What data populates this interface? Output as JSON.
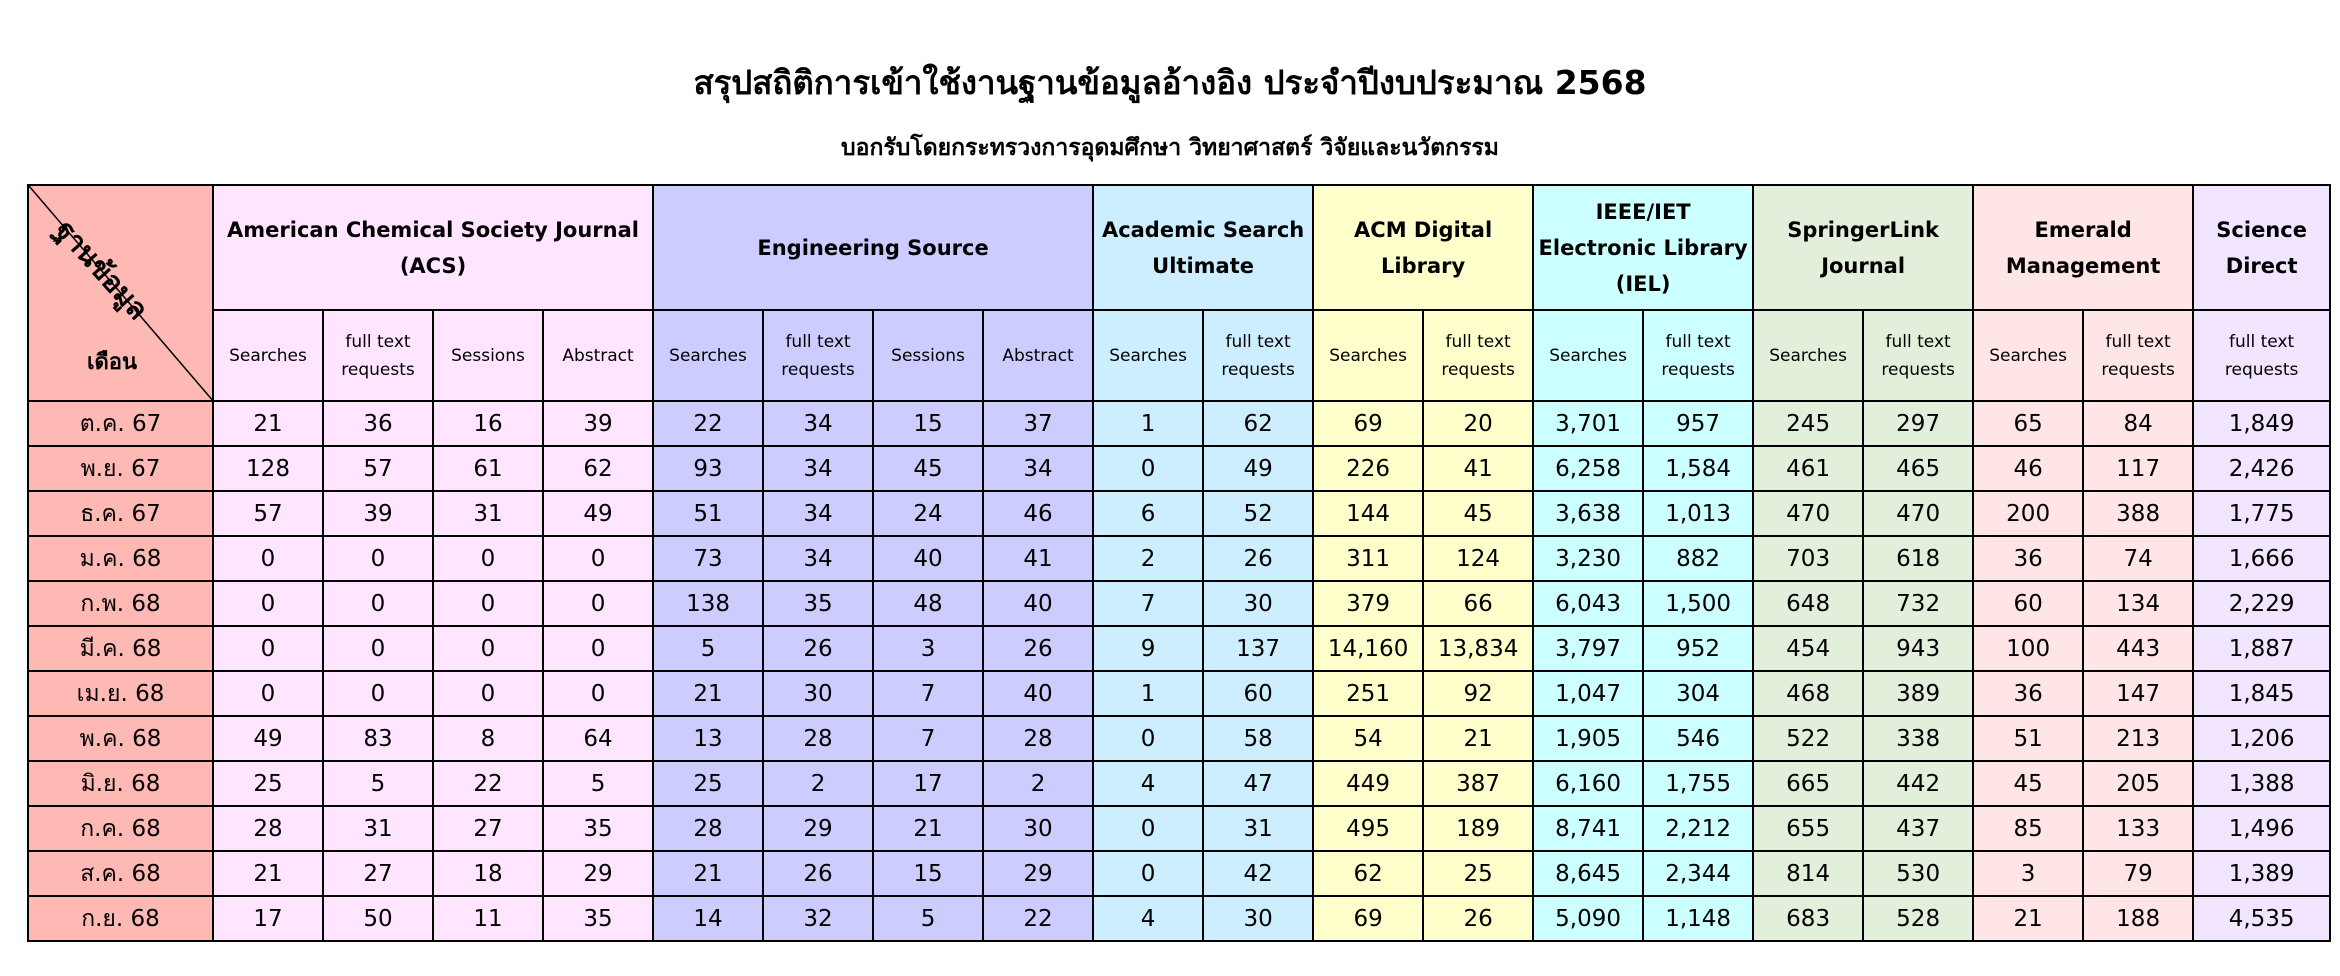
{
  "title": "สรุปสถิติการเข้าใช้งานฐานข้อมูลอ้างอิง ประจำปีงบประมาณ  2568",
  "subtitle": "บอกรับโดยกระทรวงการอุดมศึกษา วิทยาศาสตร์ วิจัยและนวัตกรรม",
  "corner": {
    "top_label": "ฐานข้อมูล",
    "bottom_label": "เดือน"
  },
  "databases": [
    {
      "name": "American Chemical Society Journal (ACS)",
      "color": "#ffe5ff",
      "columns": [
        "Searches",
        "full text requests",
        "Sessions",
        "Abstract"
      ]
    },
    {
      "name": "Engineering Source",
      "color": "#ccccff",
      "columns": [
        "Searches",
        "full text requests",
        "Sessions",
        "Abstract"
      ]
    },
    {
      "name": "Academic Search Ultimate",
      "color": "#cceeff",
      "columns": [
        "Searches",
        "full text requests"
      ]
    },
    {
      "name": "ACM Digital Library",
      "color": "#ffffcc",
      "columns": [
        "Searches",
        "full text requests"
      ]
    },
    {
      "name": "IEEE/IET Electronic Library (IEL)",
      "color": "#ccffff",
      "columns": [
        "Searches",
        "full text requests"
      ]
    },
    {
      "name": "SpringerLink Journal",
      "color": "#e2efda",
      "columns": [
        "Searches",
        "full text requests"
      ]
    },
    {
      "name": "Emerald Management",
      "color": "#ffe5e5",
      "columns": [
        "Searches",
        "full text requests"
      ]
    },
    {
      "name": "Science Direct",
      "color": "#f2e5ff",
      "columns": [
        "full text requests"
      ]
    }
  ],
  "rows": [
    {
      "month": "ต.ค. 67",
      "values": [
        "21",
        "36",
        "16",
        "39",
        "22",
        "34",
        "15",
        "37",
        "1",
        "62",
        "69",
        "20",
        "3,701",
        "957",
        "245",
        "297",
        "65",
        "84",
        "1,849"
      ]
    },
    {
      "month": "พ.ย. 67",
      "values": [
        "128",
        "57",
        "61",
        "62",
        "93",
        "34",
        "45",
        "34",
        "0",
        "49",
        "226",
        "41",
        "6,258",
        "1,584",
        "461",
        "465",
        "46",
        "117",
        "2,426"
      ]
    },
    {
      "month": "ธ.ค. 67",
      "values": [
        "57",
        "39",
        "31",
        "49",
        "51",
        "34",
        "24",
        "46",
        "6",
        "52",
        "144",
        "45",
        "3,638",
        "1,013",
        "470",
        "470",
        "200",
        "388",
        "1,775"
      ]
    },
    {
      "month": "ม.ค. 68",
      "values": [
        "0",
        "0",
        "0",
        "0",
        "73",
        "34",
        "40",
        "41",
        "2",
        "26",
        "311",
        "124",
        "3,230",
        "882",
        "703",
        "618",
        "36",
        "74",
        "1,666"
      ]
    },
    {
      "month": "ก.พ. 68",
      "values": [
        "0",
        "0",
        "0",
        "0",
        "138",
        "35",
        "48",
        "40",
        "7",
        "30",
        "379",
        "66",
        "6,043",
        "1,500",
        "648",
        "732",
        "60",
        "134",
        "2,229"
      ]
    },
    {
      "month": "มี.ค. 68",
      "values": [
        "0",
        "0",
        "0",
        "0",
        "5",
        "26",
        "3",
        "26",
        "9",
        "137",
        "14,160",
        "13,834",
        "3,797",
        "952",
        "454",
        "943",
        "100",
        "443",
        "1,887"
      ]
    },
    {
      "month": "เม.ย. 68",
      "values": [
        "0",
        "0",
        "0",
        "0",
        "21",
        "30",
        "7",
        "40",
        "1",
        "60",
        "251",
        "92",
        "1,047",
        "304",
        "468",
        "389",
        "36",
        "147",
        "1,845"
      ]
    },
    {
      "month": "พ.ค. 68",
      "values": [
        "49",
        "83",
        "8",
        "64",
        "13",
        "28",
        "7",
        "28",
        "0",
        "58",
        "54",
        "21",
        "1,905",
        "546",
        "522",
        "338",
        "51",
        "213",
        "1,206"
      ]
    },
    {
      "month": "มิ.ย. 68",
      "values": [
        "25",
        "5",
        "22",
        "5",
        "25",
        "2",
        "17",
        "2",
        "4",
        "47",
        "449",
        "387",
        "6,160",
        "1,755",
        "665",
        "442",
        "45",
        "205",
        "1,388"
      ]
    },
    {
      "month": "ก.ค. 68",
      "values": [
        "28",
        "31",
        "27",
        "35",
        "28",
        "29",
        "21",
        "30",
        "0",
        "31",
        "495",
        "189",
        "8,741",
        "2,212",
        "655",
        "437",
        "85",
        "133",
        "1,496"
      ]
    },
    {
      "month": "ส.ค. 68",
      "values": [
        "21",
        "27",
        "18",
        "29",
        "21",
        "26",
        "15",
        "29",
        "0",
        "42",
        "62",
        "25",
        "8,645",
        "2,344",
        "814",
        "530",
        "3",
        "79",
        "1,389"
      ]
    },
    {
      "month": "ก.ย. 68",
      "values": [
        "17",
        "50",
        "11",
        "35",
        "14",
        "32",
        "5",
        "22",
        "4",
        "30",
        "69",
        "26",
        "5,090",
        "1,148",
        "683",
        "528",
        "21",
        "188",
        "4,535"
      ]
    }
  ],
  "colors": {
    "month_column": "#ffb9b5",
    "border": "#000000"
  }
}
